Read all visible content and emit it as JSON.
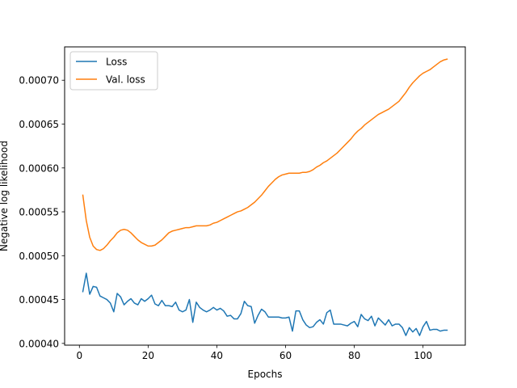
{
  "chart_data": {
    "type": "line",
    "title": "",
    "xlabel": "Epochs",
    "ylabel": "Negative log likelihood",
    "xlim": [
      -4.3,
      112.3
    ],
    "ylim": [
      0.000398,
      0.000738
    ],
    "xticks": [
      0,
      20,
      40,
      60,
      80,
      100
    ],
    "xtick_labels": [
      "0",
      "20",
      "40",
      "60",
      "80",
      "100"
    ],
    "yticks": [
      0.0004,
      0.00045,
      0.0005,
      0.00055,
      0.0006,
      0.00065,
      0.0007
    ],
    "ytick_labels": [
      "0.00040",
      "0.00045",
      "0.00050",
      "0.00055",
      "0.00060",
      "0.00065",
      "0.00070"
    ],
    "grid": false,
    "legend_position": "upper-left",
    "series": [
      {
        "name": "Loss",
        "color": "#1f77b4",
        "x": [
          1,
          2,
          3,
          4,
          5,
          6,
          7,
          8,
          9,
          10,
          11,
          12,
          13,
          14,
          15,
          16,
          17,
          18,
          19,
          20,
          21,
          22,
          23,
          24,
          25,
          26,
          27,
          28,
          29,
          30,
          31,
          32,
          33,
          34,
          35,
          36,
          37,
          38,
          39,
          40,
          41,
          42,
          43,
          44,
          45,
          46,
          47,
          48,
          49,
          50,
          51,
          52,
          53,
          54,
          55,
          56,
          57,
          58,
          59,
          60,
          61,
          62,
          63,
          64,
          65,
          66,
          67,
          68,
          69,
          70,
          71,
          72,
          73,
          74,
          75,
          76,
          77,
          78,
          79,
          80,
          81,
          82,
          83,
          84,
          85,
          86,
          87,
          88,
          89,
          90,
          91,
          92,
          93,
          94,
          95,
          96,
          97,
          98,
          99,
          100,
          101,
          102,
          103,
          104,
          105,
          106,
          107
        ],
        "y": [
          0.000459,
          0.00048,
          0.000456,
          0.000465,
          0.000464,
          0.000454,
          0.000452,
          0.00045,
          0.000446,
          0.000436,
          0.000457,
          0.000453,
          0.000444,
          0.000448,
          0.000451,
          0.000446,
          0.000444,
          0.000451,
          0.000448,
          0.000451,
          0.000455,
          0.000445,
          0.000443,
          0.000449,
          0.000443,
          0.000443,
          0.000442,
          0.000447,
          0.000438,
          0.000436,
          0.000438,
          0.00045,
          0.000424,
          0.000447,
          0.000441,
          0.000438,
          0.000436,
          0.000438,
          0.000441,
          0.000438,
          0.00044,
          0.000437,
          0.000431,
          0.000432,
          0.000428,
          0.000428,
          0.000434,
          0.000448,
          0.000443,
          0.000442,
          0.000423,
          0.000432,
          0.000439,
          0.000436,
          0.00043,
          0.00043,
          0.00043,
          0.00043,
          0.000429,
          0.000429,
          0.00043,
          0.000414,
          0.000437,
          0.000437,
          0.000427,
          0.000421,
          0.000418,
          0.000419,
          0.000424,
          0.000427,
          0.000422,
          0.000435,
          0.000438,
          0.000422,
          0.000422,
          0.000422,
          0.000421,
          0.00042,
          0.000423,
          0.000425,
          0.000419,
          0.000433,
          0.000428,
          0.000426,
          0.000431,
          0.00042,
          0.000429,
          0.000425,
          0.000421,
          0.000427,
          0.00042,
          0.000422,
          0.000422,
          0.000418,
          0.000409,
          0.000418,
          0.000413,
          0.000417,
          0.000409,
          0.000419,
          0.000425,
          0.000415,
          0.000416,
          0.000416,
          0.000414,
          0.000415,
          0.000415
        ]
      },
      {
        "name": "Val. loss",
        "color": "#ff7f0e",
        "x": [
          1,
          2,
          3,
          4,
          5,
          6,
          7,
          8,
          9,
          10,
          11,
          12,
          13,
          14,
          15,
          16,
          17,
          18,
          19,
          20,
          21,
          22,
          23,
          24,
          25,
          26,
          27,
          28,
          29,
          30,
          31,
          32,
          33,
          34,
          35,
          36,
          37,
          38,
          39,
          40,
          41,
          42,
          43,
          44,
          45,
          46,
          47,
          48,
          49,
          50,
          51,
          52,
          53,
          54,
          55,
          56,
          57,
          58,
          59,
          60,
          61,
          62,
          63,
          64,
          65,
          66,
          67,
          68,
          69,
          70,
          71,
          72,
          73,
          74,
          75,
          76,
          77,
          78,
          79,
          80,
          81,
          82,
          83,
          84,
          85,
          86,
          87,
          88,
          89,
          90,
          91,
          92,
          93,
          94,
          95,
          96,
          97,
          98,
          99,
          100,
          101,
          102,
          103,
          104,
          105,
          106,
          107
        ],
        "y": [
          0.000569,
          0.00054,
          0.000521,
          0.000511,
          0.000507,
          0.000506,
          0.000508,
          0.000512,
          0.000517,
          0.000521,
          0.000526,
          0.000529,
          0.00053,
          0.000529,
          0.000526,
          0.000522,
          0.000518,
          0.000515,
          0.000513,
          0.000511,
          0.000511,
          0.000512,
          0.000515,
          0.000518,
          0.000522,
          0.000526,
          0.000528,
          0.000529,
          0.00053,
          0.000531,
          0.000532,
          0.000532,
          0.000533,
          0.000534,
          0.000534,
          0.000534,
          0.000534,
          0.000535,
          0.000537,
          0.000538,
          0.00054,
          0.000542,
          0.000544,
          0.000546,
          0.000548,
          0.00055,
          0.000551,
          0.000553,
          0.000555,
          0.000558,
          0.000561,
          0.000565,
          0.000569,
          0.000574,
          0.000579,
          0.000583,
          0.000587,
          0.00059,
          0.000592,
          0.000593,
          0.000594,
          0.000594,
          0.000594,
          0.000594,
          0.000595,
          0.000595,
          0.000596,
          0.000598,
          0.000601,
          0.000603,
          0.000606,
          0.000608,
          0.000611,
          0.000614,
          0.000617,
          0.000621,
          0.000625,
          0.000629,
          0.000633,
          0.000638,
          0.000642,
          0.000645,
          0.000649,
          0.000652,
          0.000655,
          0.000658,
          0.000661,
          0.000663,
          0.000665,
          0.000667,
          0.00067,
          0.000673,
          0.000676,
          0.000681,
          0.000686,
          0.000692,
          0.000697,
          0.000701,
          0.000705,
          0.000708,
          0.00071,
          0.000712,
          0.000715,
          0.000718,
          0.000721,
          0.000723,
          0.000724
        ]
      }
    ]
  }
}
